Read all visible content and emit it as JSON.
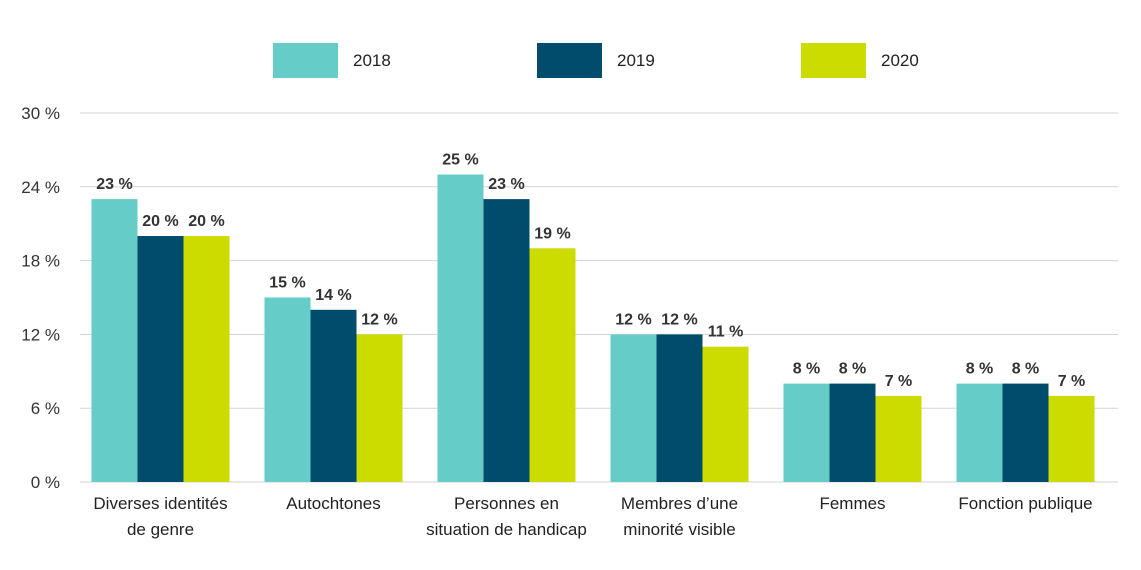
{
  "chart_data": {
    "type": "bar",
    "title": "",
    "xlabel": "",
    "ylabel": "",
    "ylim": [
      0,
      30
    ],
    "yticks": [
      0,
      6,
      12,
      18,
      24,
      30
    ],
    "ytick_labels": [
      "0 %",
      "6 %",
      "12 %",
      "18 %",
      "24 %",
      "30 %"
    ],
    "grid": true,
    "legend_position": "top",
    "categories": [
      [
        "Diverses identités",
        "de genre"
      ],
      [
        "Autochtones"
      ],
      [
        "Personnes en",
        "situation de handicap"
      ],
      [
        "Membres d’une",
        "minorité visible"
      ],
      [
        "Femmes"
      ],
      [
        "Fonction publique"
      ]
    ],
    "series": [
      {
        "name": "2018",
        "color": "#66CCC8",
        "values": [
          23,
          15,
          25,
          12,
          8,
          8
        ],
        "labels": [
          "23 %",
          "15 %",
          "25 %",
          "12 %",
          "8 %",
          "8 %"
        ]
      },
      {
        "name": "2019",
        "color": "#004C6C",
        "values": [
          20,
          14,
          23,
          12,
          8,
          8
        ],
        "labels": [
          "20 %",
          "14 %",
          "23 %",
          "12 %",
          "8 %",
          "8 %"
        ]
      },
      {
        "name": "2020",
        "color": "#CCDC00",
        "values": [
          20,
          12,
          19,
          11,
          7,
          7
        ],
        "labels": [
          "20 %",
          "12 %",
          "19 %",
          "11 %",
          "7 %",
          "7 %"
        ]
      }
    ]
  }
}
